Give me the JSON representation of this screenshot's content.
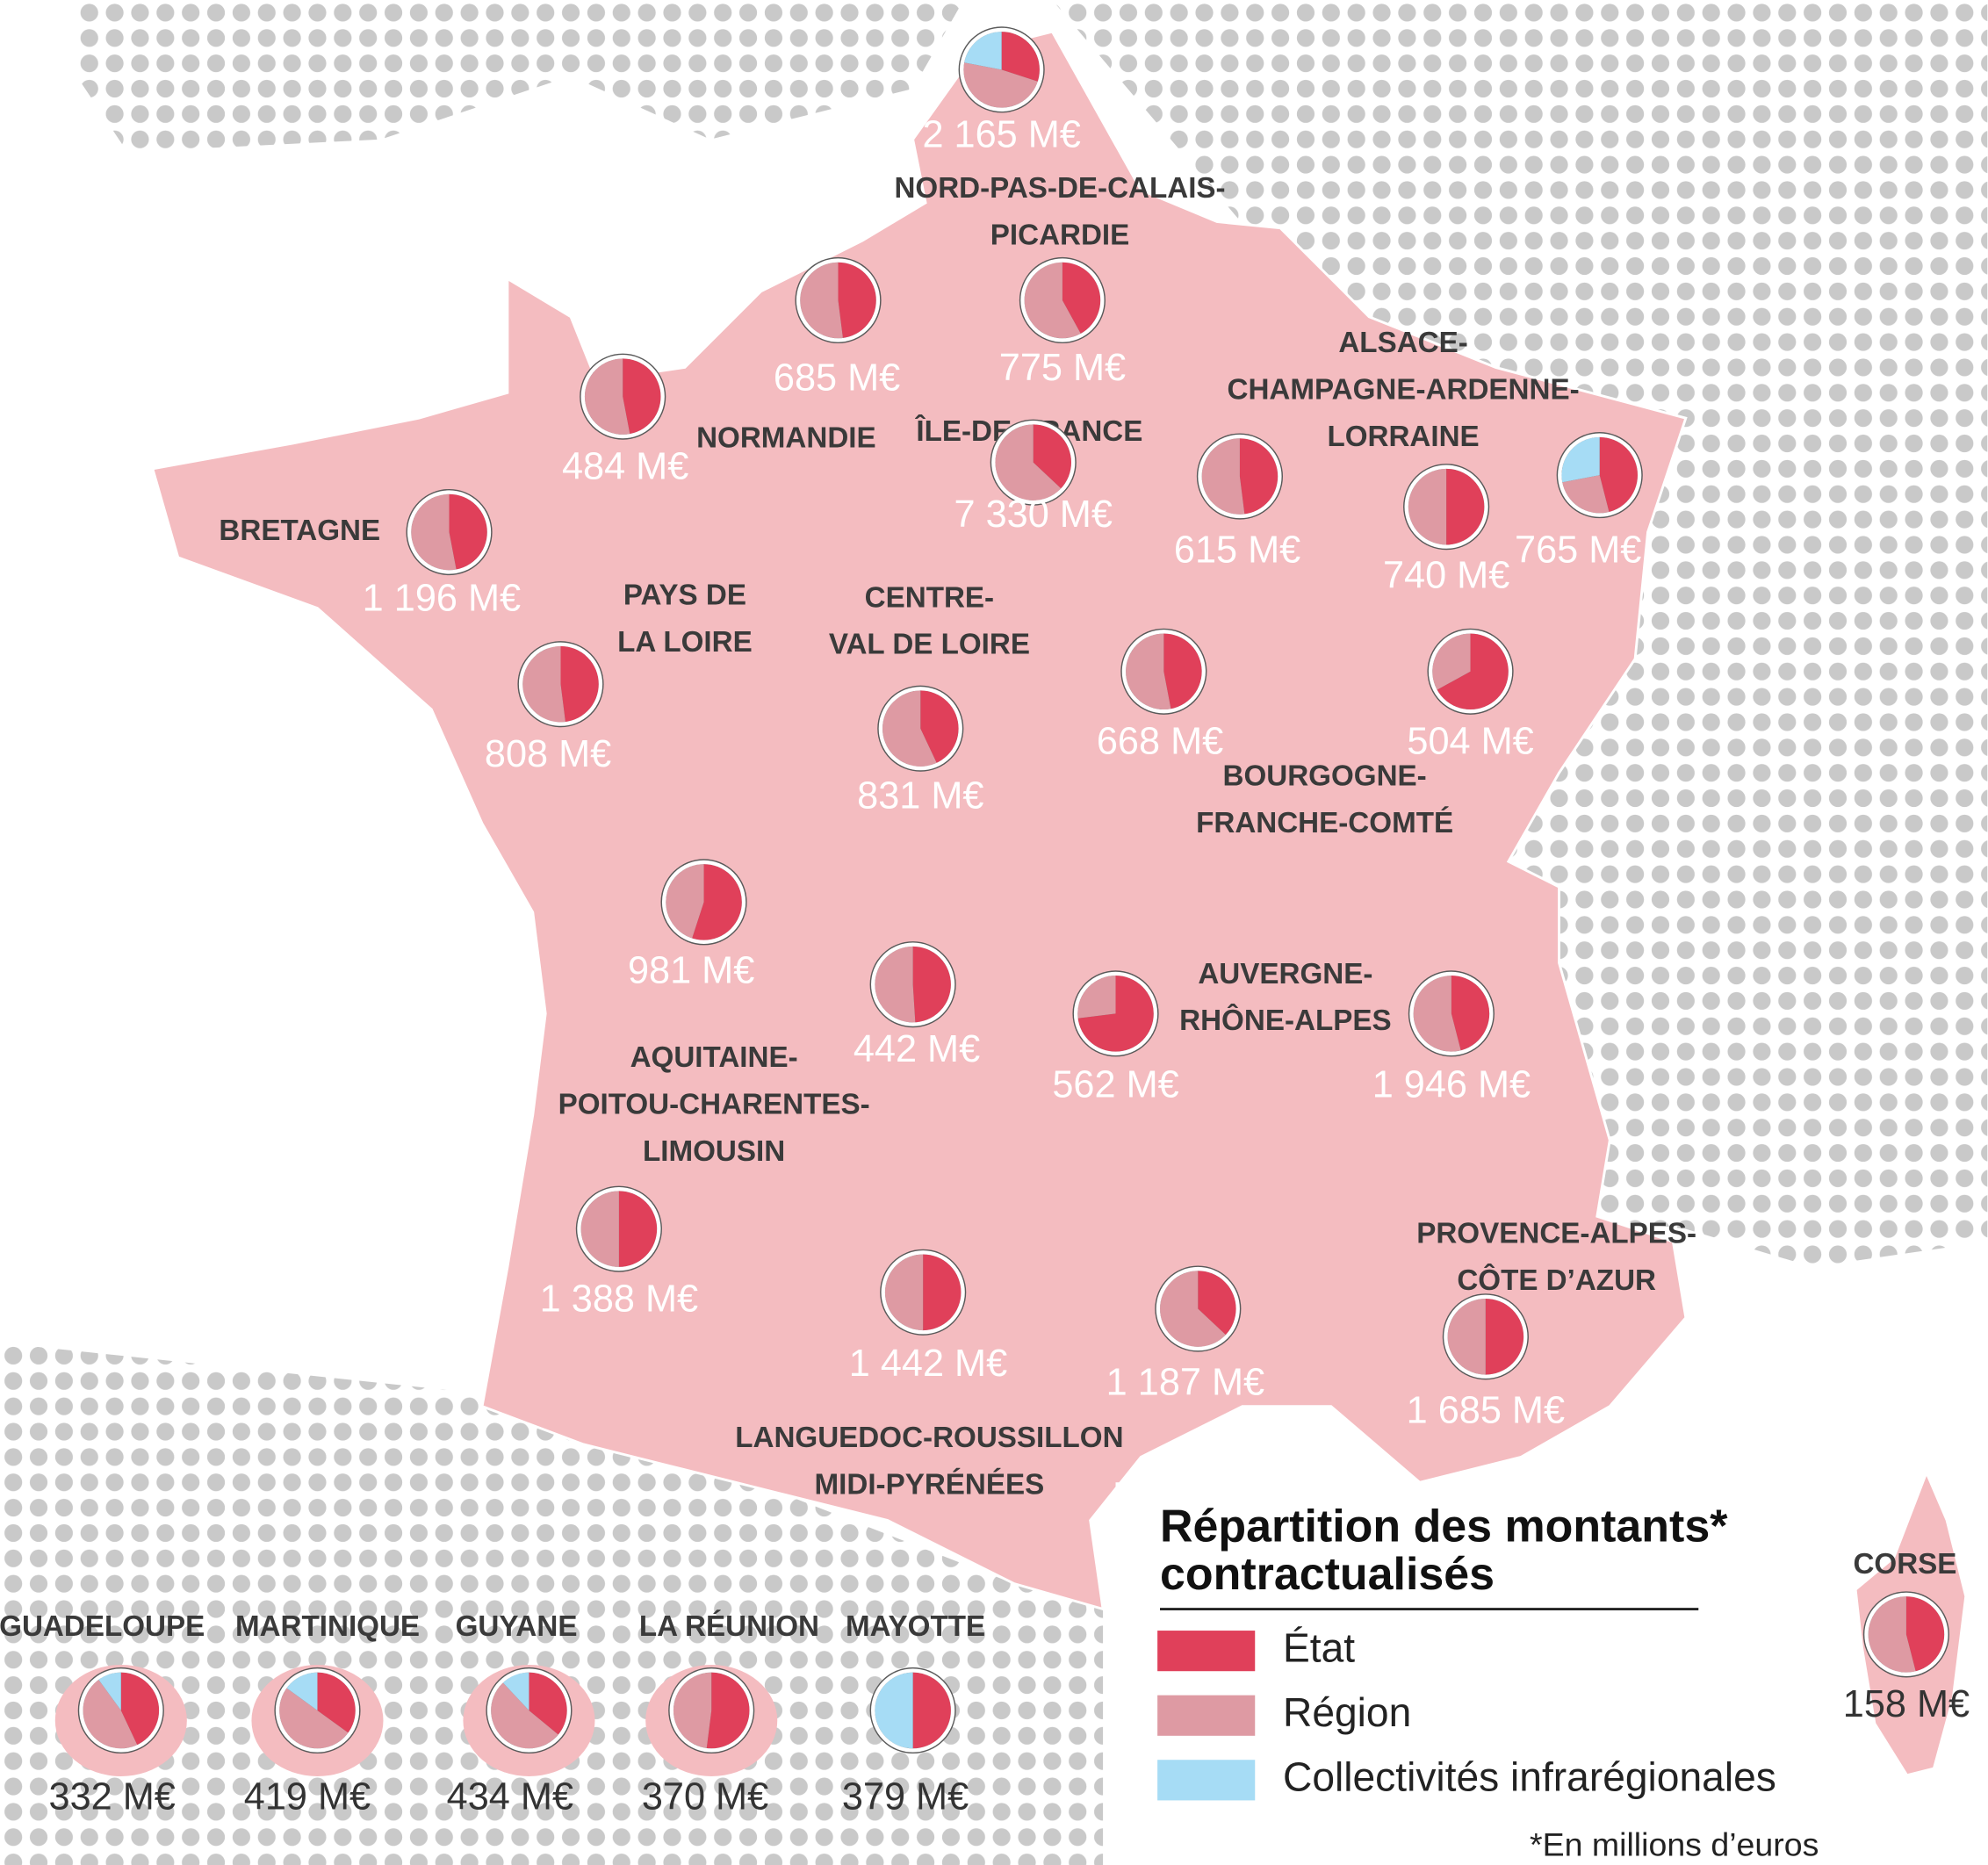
{
  "title": [
    "Répartition des montants*",
    "contractualisés"
  ],
  "legend": {
    "items": [
      {
        "label": "État",
        "color": "#e0405a"
      },
      {
        "label": "Région",
        "color": "#de9aa3"
      },
      {
        "label": "Collectivités infrarégionales",
        "color": "#a6dcf5"
      }
    ],
    "note": "*En millions d’euros"
  },
  "regions": [
    {
      "lines": [
        "NORD-PAS-DE-CALAIS-",
        "PICARDIE"
      ]
    },
    {
      "lines": [
        "NORMANDIE"
      ]
    },
    {
      "lines": [
        "ÎLE-DE-FRANCE"
      ]
    },
    {
      "lines": [
        "ALSACE-",
        "CHAMPAGNE-ARDENNE-",
        "LORRAINE"
      ]
    },
    {
      "lines": [
        "BRETAGNE"
      ]
    },
    {
      "lines": [
        "PAYS DE",
        "LA LOIRE"
      ]
    },
    {
      "lines": [
        "CENTRE-",
        "VAL DE LOIRE"
      ]
    },
    {
      "lines": [
        "BOURGOGNE-",
        "FRANCHE-COMTÉ"
      ]
    },
    {
      "lines": [
        "AUVERGNE-",
        "RHÔNE-ALPES"
      ]
    },
    {
      "lines": [
        "AQUITAINE-",
        "POITOU-CHARENTES-",
        "LIMOUSIN"
      ]
    },
    {
      "lines": [
        "PROVENCE-ALPES-",
        "CÔTE D’AZUR"
      ]
    },
    {
      "lines": [
        "LANGUEDOC-ROUSSILLON",
        "MIDI-PYRÉNÉES"
      ]
    },
    {
      "lines": [
        "CORSE"
      ]
    },
    {
      "lines": [
        "GUADELOUPE"
      ]
    },
    {
      "lines": [
        "MARTINIQUE"
      ]
    },
    {
      "lines": [
        "GUYANE"
      ]
    },
    {
      "lines": [
        "LA RÉUNION"
      ]
    },
    {
      "lines": [
        "MAYOTTE"
      ]
    }
  ],
  "pies": [
    {
      "amount": "2 165 M€",
      "shares": [
        30,
        48,
        22
      ]
    },
    {
      "amount": "685 M€",
      "shares": [
        48,
        52,
        0
      ]
    },
    {
      "amount": "775 M€",
      "shares": [
        42,
        58,
        0
      ]
    },
    {
      "amount": "484 M€",
      "shares": [
        47,
        53,
        0
      ]
    },
    {
      "amount": "7 330 M€",
      "shares": [
        37,
        63,
        0
      ]
    },
    {
      "amount": "1 196 M€",
      "shares": [
        47,
        53,
        0
      ]
    },
    {
      "amount": "615 M€",
      "shares": [
        48,
        52,
        0
      ]
    },
    {
      "amount": "740 M€",
      "shares": [
        50,
        50,
        0
      ]
    },
    {
      "amount": "765 M€",
      "shares": [
        46,
        26,
        28
      ]
    },
    {
      "amount": "808 M€",
      "shares": [
        48,
        52,
        0
      ]
    },
    {
      "amount": "831 M€",
      "shares": [
        43,
        57,
        0
      ]
    },
    {
      "amount": "668 M€",
      "shares": [
        47,
        53,
        0
      ]
    },
    {
      "amount": "504 M€",
      "shares": [
        67,
        33,
        0
      ]
    },
    {
      "amount": "981 M€",
      "shares": [
        55,
        45,
        0
      ]
    },
    {
      "amount": "442 M€",
      "shares": [
        49,
        51,
        0
      ]
    },
    {
      "amount": "562 M€",
      "shares": [
        73,
        27,
        0
      ]
    },
    {
      "amount": "1 946 M€",
      "shares": [
        46,
        54,
        0
      ]
    },
    {
      "amount": "1 388 M€",
      "shares": [
        50,
        50,
        0
      ]
    },
    {
      "amount": "1 442 M€",
      "shares": [
        50,
        50,
        0
      ]
    },
    {
      "amount": "1 187 M€",
      "shares": [
        37,
        63,
        0
      ]
    },
    {
      "amount": "1 685 M€",
      "shares": [
        50,
        50,
        0
      ]
    },
    {
      "amount": "158 M€",
      "shares": [
        46,
        54,
        0
      ]
    },
    {
      "amount": "332 M€",
      "shares": [
        43,
        47,
        10
      ]
    },
    {
      "amount": "419 M€",
      "shares": [
        35,
        50,
        15
      ]
    },
    {
      "amount": "434 M€",
      "shares": [
        36,
        52,
        12
      ]
    },
    {
      "amount": "370 M€",
      "shares": [
        52,
        48,
        0
      ]
    },
    {
      "amount": "379 M€",
      "shares": [
        50,
        0,
        50
      ]
    }
  ]
}
